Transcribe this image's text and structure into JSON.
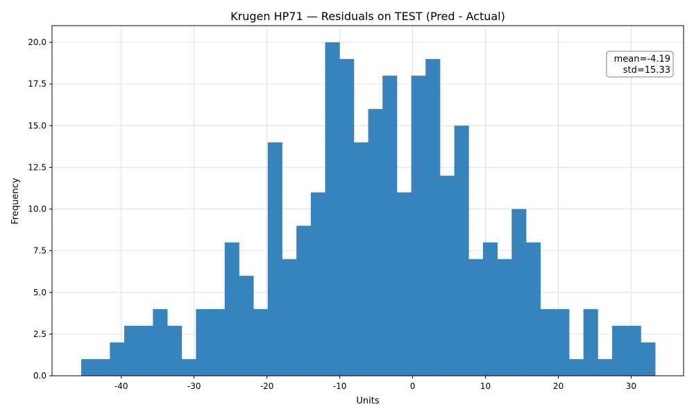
{
  "chart_data": {
    "type": "histogram",
    "title": "Krugen HP71 — Residuals on TEST (Pred - Actual)",
    "xlabel": "Units",
    "ylabel": "Frequency",
    "xlim": [
      -49.5,
      37.2
    ],
    "ylim": [
      0,
      21
    ],
    "grid": true,
    "bar_color": "#3381bd",
    "bin_start": -45.5,
    "bin_width": 1.97,
    "counts": [
      1,
      1,
      2,
      3,
      3,
      4,
      3,
      1,
      4,
      4,
      8,
      6,
      4,
      14,
      7,
      9,
      11,
      20,
      19,
      14,
      16,
      18,
      11,
      18,
      19,
      12,
      15,
      7,
      8,
      7,
      10,
      8,
      4,
      4,
      1,
      4,
      1,
      3,
      3,
      2
    ],
    "x_ticks": [
      -40,
      -30,
      -20,
      -10,
      0,
      10,
      20,
      30
    ],
    "x_tick_labels": [
      "-40",
      "-30",
      "-20",
      "-10",
      "0",
      "10",
      "20",
      "30"
    ],
    "y_ticks": [
      0,
      2.5,
      5,
      7.5,
      10,
      12.5,
      15,
      17.5,
      20
    ],
    "y_tick_labels": [
      "0.0",
      "2.5",
      "5.0",
      "7.5",
      "10.0",
      "12.5",
      "15.0",
      "17.5",
      "20.0"
    ],
    "annotation": {
      "mean": "mean=-4.19",
      "std": "std=15.33",
      "position": "top-right"
    }
  }
}
